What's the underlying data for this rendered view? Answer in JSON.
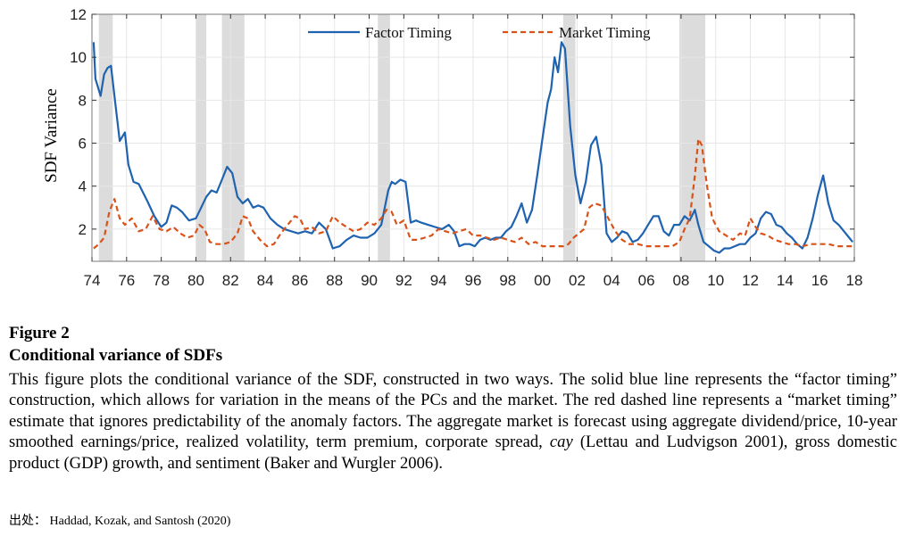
{
  "chart_data": {
    "type": "line",
    "ylabel": "SDF Variance",
    "xlabel": "",
    "xlim": [
      1974,
      2018
    ],
    "ylim": [
      0.5,
      12
    ],
    "yticks": [
      2,
      4,
      6,
      8,
      10,
      12
    ],
    "xtick_labels": [
      "74",
      "76",
      "78",
      "80",
      "82",
      "84",
      "86",
      "88",
      "90",
      "92",
      "94",
      "96",
      "98",
      "00",
      "02",
      "04",
      "06",
      "08",
      "10",
      "12",
      "14",
      "16",
      "18"
    ],
    "grid": true,
    "legend_position": "top",
    "recessions": [
      [
        1974.4,
        1975.2
      ],
      [
        1980.0,
        1980.6
      ],
      [
        1981.5,
        1982.8
      ],
      [
        1990.5,
        1991.2
      ],
      [
        2001.2,
        2001.9
      ],
      [
        2007.9,
        2009.4
      ]
    ],
    "series": [
      {
        "name": "Factor Timing",
        "color": "#1f63b0",
        "style": "solid",
        "x": [
          1974.1,
          1974.2,
          1974.5,
          1974.7,
          1974.9,
          1975.1,
          1975.3,
          1975.6,
          1975.9,
          1976.1,
          1976.4,
          1976.7,
          1977.2,
          1977.6,
          1978.0,
          1978.3,
          1978.6,
          1978.9,
          1979.2,
          1979.6,
          1980.0,
          1980.3,
          1980.6,
          1980.9,
          1981.2,
          1981.5,
          1981.8,
          1982.1,
          1982.4,
          1982.7,
          1983.0,
          1983.3,
          1983.6,
          1983.9,
          1984.3,
          1984.7,
          1985.1,
          1985.5,
          1985.9,
          1986.3,
          1986.7,
          1987.1,
          1987.5,
          1987.9,
          1988.3,
          1988.7,
          1989.1,
          1989.5,
          1989.9,
          1990.3,
          1990.7,
          1990.9,
          1991.1,
          1991.3,
          1991.5,
          1991.8,
          1992.1,
          1992.4,
          1992.7,
          1993.0,
          1993.4,
          1993.8,
          1994.2,
          1994.6,
          1994.9,
          1995.2,
          1995.5,
          1995.8,
          1996.1,
          1996.4,
          1996.7,
          1997.0,
          1997.3,
          1997.6,
          1997.9,
          1998.2,
          1998.5,
          1998.8,
          1999.1,
          1999.4,
          1999.7,
          2000.0,
          2000.3,
          2000.5,
          2000.7,
          2000.9,
          2001.1,
          2001.3,
          2001.6,
          2001.9,
          2002.2,
          2002.5,
          2002.8,
          2003.1,
          2003.4,
          2003.7,
          2004.0,
          2004.3,
          2004.6,
          2004.9,
          2005.2,
          2005.5,
          2005.8,
          2006.1,
          2006.4,
          2006.7,
          2007.0,
          2007.3,
          2007.6,
          2007.9,
          2008.2,
          2008.5,
          2008.8,
          2009.0,
          2009.3,
          2009.6,
          2009.9,
          2010.2,
          2010.5,
          2010.8,
          2011.1,
          2011.4,
          2011.7,
          2012.0,
          2012.3,
          2012.6,
          2012.9,
          2013.2,
          2013.5,
          2013.8,
          2014.1,
          2014.4,
          2014.7,
          2015.0,
          2015.3,
          2015.6,
          2015.9,
          2016.2,
          2016.5,
          2016.8,
          2017.1,
          2017.4,
          2017.7,
          2017.9
        ],
        "y": [
          10.7,
          9.0,
          8.2,
          9.2,
          9.5,
          9.6,
          8.2,
          6.1,
          6.5,
          5.0,
          4.2,
          4.1,
          3.3,
          2.6,
          2.1,
          2.3,
          3.1,
          3.0,
          2.8,
          2.4,
          2.5,
          3.0,
          3.5,
          3.8,
          3.7,
          4.3,
          4.9,
          4.6,
          3.5,
          3.2,
          3.4,
          3.0,
          3.1,
          3.0,
          2.5,
          2.2,
          2.0,
          1.9,
          1.8,
          1.9,
          1.8,
          2.3,
          2.0,
          1.1,
          1.2,
          1.5,
          1.7,
          1.6,
          1.6,
          1.8,
          2.2,
          3.0,
          3.8,
          4.2,
          4.1,
          4.3,
          4.2,
          2.3,
          2.4,
          2.3,
          2.2,
          2.1,
          2.0,
          2.2,
          1.9,
          1.2,
          1.3,
          1.3,
          1.2,
          1.5,
          1.6,
          1.5,
          1.6,
          1.6,
          1.9,
          2.1,
          2.6,
          3.2,
          2.3,
          2.9,
          4.5,
          6.2,
          7.9,
          8.5,
          10.0,
          9.3,
          10.7,
          10.4,
          6.8,
          4.5,
          3.2,
          4.2,
          5.9,
          6.3,
          5.0,
          1.8,
          1.4,
          1.6,
          1.9,
          1.8,
          1.4,
          1.5,
          1.8,
          2.2,
          2.6,
          2.6,
          1.9,
          1.7,
          2.2,
          2.2,
          2.6,
          2.4,
          2.9,
          2.2,
          1.4,
          1.2,
          1.0,
          0.9,
          1.1,
          1.1,
          1.2,
          1.3,
          1.3,
          1.6,
          1.8,
          2.5,
          2.8,
          2.7,
          2.2,
          2.1,
          1.8,
          1.6,
          1.3,
          1.1,
          1.6,
          2.5,
          3.6,
          4.5,
          3.2,
          2.4,
          2.2,
          1.9,
          1.6,
          1.4
        ]
      },
      {
        "name": "Market Timing",
        "color": "#d95319",
        "style": "dashed",
        "x": [
          1974.1,
          1974.4,
          1974.7,
          1975.0,
          1975.3,
          1975.6,
          1975.9,
          1976.3,
          1976.7,
          1977.1,
          1977.5,
          1977.9,
          1978.3,
          1978.7,
          1979.1,
          1979.5,
          1979.9,
          1980.2,
          1980.5,
          1980.8,
          1981.2,
          1981.6,
          1982.0,
          1982.4,
          1982.7,
          1983.0,
          1983.3,
          1983.7,
          1984.1,
          1984.5,
          1984.9,
          1985.3,
          1985.7,
          1986.0,
          1986.3,
          1986.7,
          1987.1,
          1987.5,
          1987.9,
          1988.3,
          1988.7,
          1989.1,
          1989.5,
          1989.9,
          1990.3,
          1990.7,
          1991.0,
          1991.3,
          1991.6,
          1992.0,
          1992.4,
          1992.8,
          1993.2,
          1993.6,
          1994.0,
          1994.4,
          1994.8,
          1995.2,
          1995.6,
          1996.0,
          1996.4,
          1996.8,
          1997.2,
          1997.6,
          1998.0,
          1998.4,
          1998.8,
          1999.2,
          1999.6,
          2000.0,
          2000.4,
          2000.8,
          2001.2,
          2001.5,
          2001.8,
          2002.1,
          2002.4,
          2002.7,
          2003.0,
          2003.4,
          2003.8,
          2004.2,
          2004.6,
          2005.0,
          2005.5,
          2006.0,
          2006.5,
          2007.0,
          2007.5,
          2007.9,
          2008.2,
          2008.5,
          2008.8,
          2009.0,
          2009.2,
          2009.5,
          2009.8,
          2010.2,
          2010.6,
          2011.0,
          2011.4,
          2011.7,
          2012.0,
          2012.3,
          2012.6,
          2013.0,
          2013.4,
          2013.8,
          2014.2,
          2014.6,
          2015.0,
          2015.5,
          2016.0,
          2016.5,
          2017.0,
          2017.5,
          2017.9
        ],
        "y": [
          1.1,
          1.3,
          1.6,
          2.8,
          3.4,
          2.5,
          2.2,
          2.5,
          1.9,
          2.0,
          2.6,
          2.0,
          1.9,
          2.1,
          1.8,
          1.6,
          1.7,
          2.2,
          2.0,
          1.4,
          1.3,
          1.3,
          1.4,
          1.8,
          2.6,
          2.5,
          1.9,
          1.5,
          1.2,
          1.3,
          1.8,
          2.2,
          2.6,
          2.5,
          2.0,
          2.1,
          1.8,
          1.9,
          2.6,
          2.3,
          2.1,
          1.9,
          2.0,
          2.3,
          2.2,
          2.5,
          2.9,
          2.8,
          2.2,
          2.4,
          1.5,
          1.5,
          1.6,
          1.7,
          2.0,
          1.9,
          1.8,
          1.9,
          2.0,
          1.7,
          1.7,
          1.6,
          1.5,
          1.6,
          1.5,
          1.4,
          1.6,
          1.3,
          1.4,
          1.2,
          1.2,
          1.2,
          1.2,
          1.3,
          1.6,
          1.8,
          2.0,
          3.0,
          3.2,
          3.1,
          2.5,
          1.9,
          1.5,
          1.3,
          1.3,
          1.2,
          1.2,
          1.2,
          1.2,
          1.4,
          2.0,
          2.5,
          4.5,
          6.2,
          5.9,
          4.0,
          2.5,
          1.9,
          1.7,
          1.5,
          1.8,
          1.7,
          2.5,
          2.1,
          1.8,
          1.7,
          1.5,
          1.4,
          1.3,
          1.3,
          1.2,
          1.3,
          1.3,
          1.3,
          1.2,
          1.2,
          1.2
        ]
      }
    ]
  },
  "caption": {
    "figure_label": "Figure 2",
    "title": "Conditional variance of SDFs",
    "body_part1": "This figure plots the conditional variance of the SDF, constructed in two ways. The solid blue line represents the “factor timing” construction, which allows for variation in the means of the PCs and the market. The red dashed line represents a “market timing” estimate that ignores predictability of the anomaly factors. The aggregate market is forecast using aggregate dividend/price, 10-year smoothed earnings/price, realized volatility, term premium, corporate spread, ",
    "body_italic": "cay",
    "body_part2": " (Lettau and Ludvigson 2001), gross domestic product (GDP) growth, and sentiment (Baker and Wurgler 2006)."
  },
  "source": "出处： Haddad, Kozak, and Santosh (2020)"
}
